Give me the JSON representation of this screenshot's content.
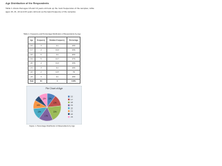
{
  "heading": "Age Distribution of the Respondents",
  "paragraph": "Table 1 shows that ages 18 and 19 years old took up the most frequencies of the samples, while ages 16, 21, 22 and 23 years old took up the least frequency of the samples.",
  "table": {
    "caption": "Table 1. Frequency and Percentage Distribution of Respondents by Age",
    "header": [
      "Age",
      "Frequency",
      "Relative Frequency",
      "Percentage"
    ],
    "rows": [
      [
        16,
        3,
        0.1,
        "10%"
      ],
      [
        17,
        4,
        0.13,
        "13%"
      ],
      [
        18,
        6,
        0.2,
        "20%"
      ],
      [
        19,
        5,
        0.17,
        "17%"
      ],
      [
        20,
        4,
        0.13,
        "13%"
      ],
      [
        21,
        3,
        0.1,
        "10%"
      ],
      [
        22,
        2,
        0.07,
        "7%"
      ],
      [
        23,
        3,
        0.1,
        "10%"
      ]
    ],
    "total": [
      "Total",
      30,
      1,
      "100%"
    ]
  },
  "figure": {
    "title": "Pie Chart of Age",
    "caption": "Figure 1. Percentage Distribution of Respondents by Age",
    "colors": [
      "#4f81bd",
      "#c0504d",
      "#9bbb59",
      "#8064a2",
      "#4bacc6",
      "#f79646",
      "#2c4d75",
      "#ff99cc"
    ]
  }
}
